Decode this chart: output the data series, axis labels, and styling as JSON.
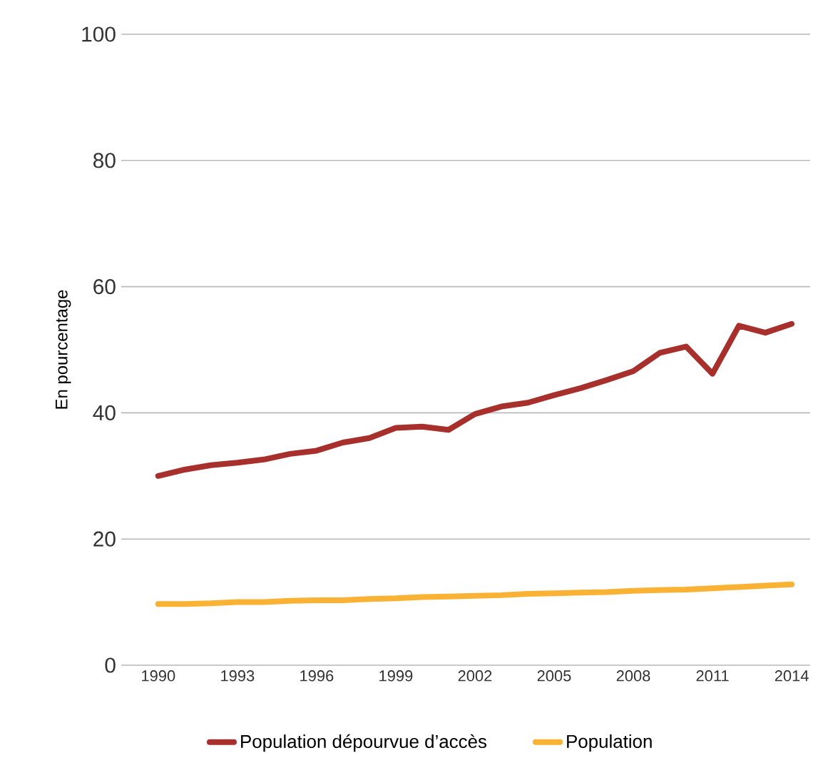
{
  "chart_data": {
    "type": "line",
    "ylabel": "En pourcentage",
    "x": [
      1990,
      1991,
      1992,
      1993,
      1994,
      1995,
      1996,
      1997,
      1998,
      1999,
      2000,
      2001,
      2002,
      2003,
      2004,
      2005,
      2006,
      2007,
      2008,
      2009,
      2010,
      2011,
      2012,
      2013,
      2014
    ],
    "series": [
      {
        "name": "Population dépourvue d’accès",
        "color": "#a8302c",
        "values": [
          30,
          31,
          31.7,
          32.1,
          32.6,
          33.5,
          34,
          35.3,
          36,
          37.6,
          37.8,
          37.3,
          39.8,
          41,
          41.6,
          42.8,
          43.9,
          45.2,
          46.6,
          49.5,
          50.5,
          46.2,
          53.8,
          52.7,
          54.1
        ]
      },
      {
        "name": "Population",
        "color": "#f9b233",
        "values": [
          9.7,
          9.7,
          9.8,
          10,
          10,
          10.2,
          10.3,
          10.3,
          10.5,
          10.6,
          10.8,
          10.9,
          11,
          11.1,
          11.3,
          11.4,
          11.5,
          11.6,
          11.8,
          11.9,
          12,
          12.2,
          12.4,
          12.6,
          12.8
        ]
      }
    ],
    "xlim": [
      1988.6,
      2014.7
    ],
    "xticks": [
      1990,
      1993,
      1996,
      1999,
      2002,
      2005,
      2008,
      2011,
      2014
    ],
    "ylim": [
      0,
      100
    ],
    "yticks": [
      0,
      20,
      40,
      60,
      80,
      100
    ],
    "grid": "y",
    "legend": "bottom",
    "marker": "none",
    "line_style": "solid"
  }
}
